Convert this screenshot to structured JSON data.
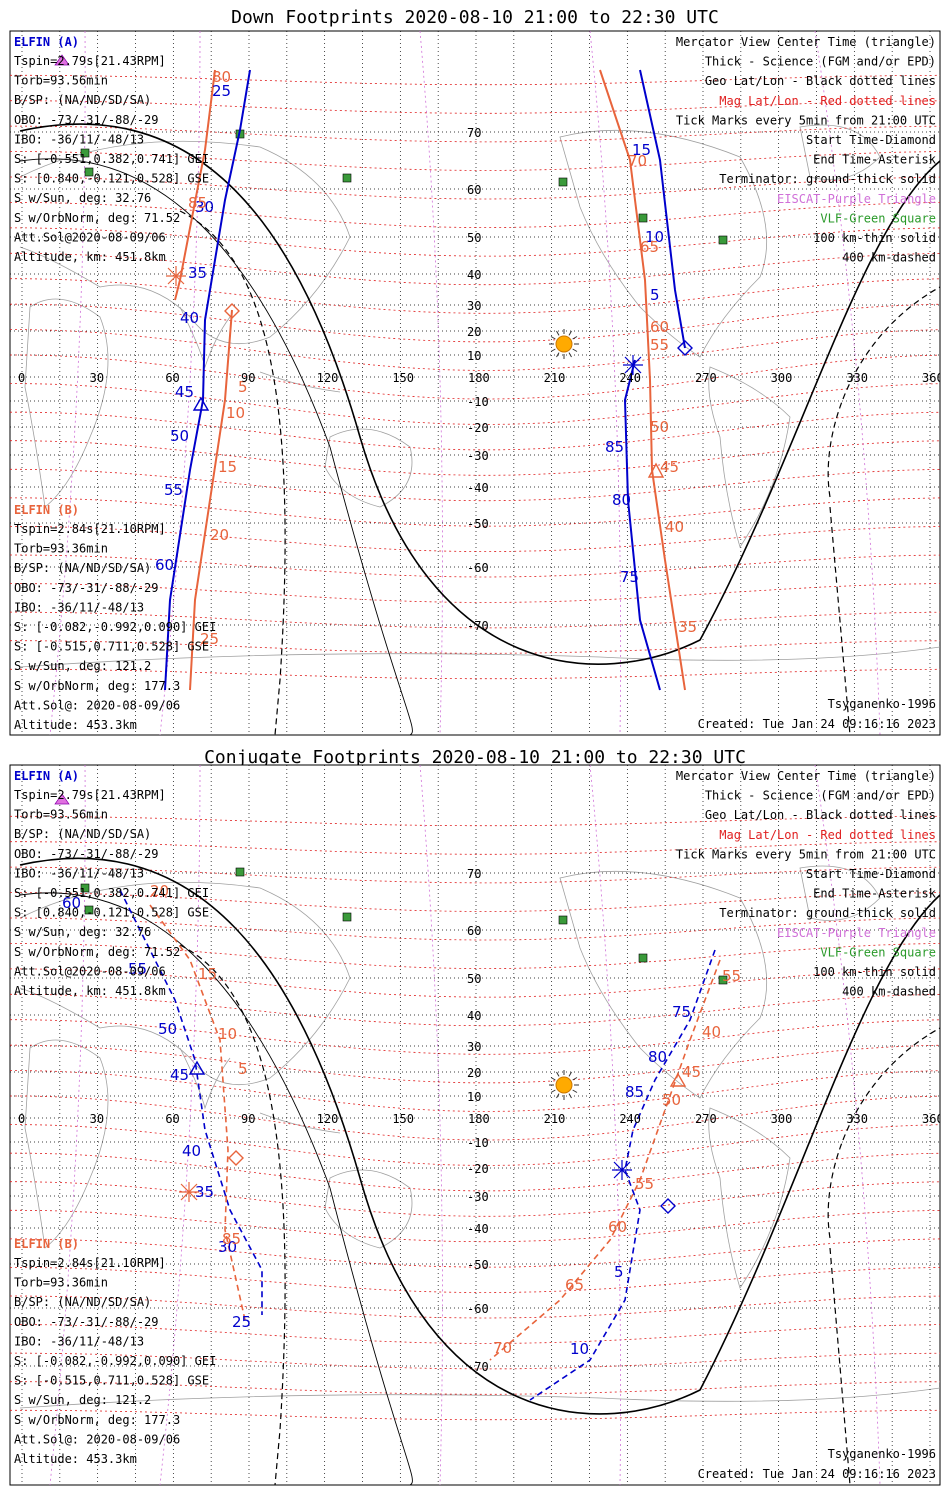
{
  "colors": {
    "elfin_a": "#0000cc",
    "elfin_b": "#e8643c",
    "mag_grid": "#e02020",
    "geo_grid": "#000000",
    "meridian_pink": "#d070d8",
    "vlf_station": "#3a9a3a",
    "sun": "#ffaa00",
    "coast": "#a0a0a0"
  },
  "panels": [
    {
      "title": "Down Footprints 2020-08-10 21:00 to 22:30 UTC",
      "tsyganenko_label": "Tsyganenko-1996",
      "created": "Created: Tue Jan 24 09:16:16 2023",
      "elfin_a": {
        "heading": "ELFIN (A)",
        "lines": [
          "Tspin=2.79s[21.43RPM]",
          "Torb=93.56min",
          "B/SP: (NA/ND/SD/SA)",
          "OBO: -73/-31/-88/-29",
          "IBO: -36/11/-48/13",
          "S: [-0.551,0.382,0.741] GEI",
          "S: [0.840,-0.121,0.528] GSE",
          "S w/Sun, deg: 32.76",
          "S w/OrbNorm, deg: 71.52",
          "Att.Sol@2020-08-09/06",
          "Altitude, km: 451.8km"
        ]
      },
      "elfin_b": {
        "heading": "ELFIN (B)",
        "lines": [
          "Tspin=2.84s[21.10RPM]",
          "Torb=93.36min",
          "B/SP: (NA/ND/SD/SA)",
          "OBO: -73/-31/-88/-29",
          "IBO: -36/11/-48/13",
          "S: [-0.082,-0.992,0.090] GEI",
          "S: [-0.515,0.711,0.528] GSE",
          "S w/Sun, deg: 121.2",
          "S w/OrbNorm, deg: 177.3",
          "Att.Sol@: 2020-08-09/06",
          "Altitude: 453.3km"
        ]
      },
      "legend": [
        "Mercator View Center Time (triangle)",
        "Thick - Science (FGM and/or EPD)",
        "Geo Lat/Lon - Black dotted lines",
        "Mag Lat/Lon - Red dotted lines",
        "Tick Marks every 5min from 21:00 UTC",
        "Start Time-Diamond",
        "End Time-Asterisk",
        "Terminator: ground-thick solid",
        "EISCAT-Purple Triangle",
        "VLF-Green Square",
        "100 km-thin solid",
        "400 km-dashed"
      ],
      "lon_ticks": [
        "0",
        "30",
        "60",
        "90",
        "120",
        "150",
        "180",
        "210",
        "240",
        "270",
        "300",
        "330",
        "360"
      ],
      "lat_ticks": [
        "70",
        "60",
        "50",
        "40",
        "30",
        "20",
        "10",
        "-10",
        "-20",
        "-30",
        "-40",
        "-50",
        "-60",
        "-70"
      ],
      "track_a_ticks": [
        "25",
        "30",
        "35",
        "40",
        "45",
        "50",
        "55",
        "60",
        "75",
        "80",
        "85",
        "5",
        "10",
        "15"
      ],
      "track_b_ticks": [
        "80",
        "85",
        "5",
        "10",
        "15",
        "20",
        "25",
        "35",
        "40",
        "45",
        "50",
        "55",
        "60",
        "65",
        "70"
      ]
    },
    {
      "title": "Conjugate Footprints 2020-08-10 21:00 to 22:30 UTC",
      "tsyganenko_label": "Tsyganenko-1996",
      "created": "Created: Tue Jan 24 09:16:16 2023",
      "elfin_a": {
        "heading": "ELFIN (A)",
        "lines": [
          "Tspin=2.79s[21.43RPM]",
          "Torb=93.56min",
          "B/SP: (NA/ND/SD/SA)",
          "OBO: -73/-31/-88/-29",
          "IBO: -36/11/-48/13",
          "S: [-0.551,0.382,0.741] GEI",
          "S: [0.840,-0.121,0.528] GSE",
          "S w/Sun, deg: 32.76",
          "S w/OrbNorm, deg: 71.52",
          "Att.Sol@2020-08-09/06",
          "Altitude, km: 451.8km"
        ]
      },
      "elfin_b": {
        "heading": "ELFIN (B)",
        "lines": [
          "Tspin=2.84s[21.10RPM]",
          "Torb=93.36min",
          "B/SP: (NA/ND/SD/SA)",
          "OBO: -73/-31/-88/-29",
          "IBO: -36/11/-48/13",
          "S: [-0.082,-0.992,0.090] GEI",
          "S: [-0.515,0.711,0.528] GSE",
          "S w/Sun, deg: 121.2",
          "S w/OrbNorm, deg: 177.3",
          "Att.Sol@: 2020-08-09/06",
          "Altitude: 453.3km"
        ]
      },
      "legend": [
        "Mercator View Center Time (triangle)",
        "Thick - Science (FGM and/or EPD)",
        "Geo Lat/Lon - Black dotted lines",
        "Mag Lat/Lon - Red dotted lines",
        "Tick Marks every 5min from 21:00 UTC",
        "Start Time-Diamond",
        "End Time-Asterisk",
        "Terminator: ground-thick solid",
        "EISCAT-Purple Triangle",
        "VLF-Green Square",
        "100 km-thin solid",
        "400 km-dashed"
      ],
      "lon_ticks": [
        "0",
        "30",
        "60",
        "90",
        "120",
        "150",
        "180",
        "210",
        "240",
        "270",
        "300",
        "330",
        "360"
      ],
      "lat_ticks": [
        "70",
        "60",
        "50",
        "40",
        "30",
        "20",
        "10",
        "-10",
        "-20",
        "-30",
        "-40",
        "-50",
        "-60",
        "-70"
      ],
      "track_a_ticks": [
        "60",
        "55",
        "50",
        "45",
        "40",
        "35",
        "30",
        "25",
        "75",
        "80",
        "85",
        "5",
        "10"
      ],
      "track_b_ticks": [
        "20",
        "15",
        "10",
        "5",
        "85",
        "55",
        "45",
        "40",
        "50",
        "55",
        "60",
        "65",
        "70"
      ]
    }
  ]
}
